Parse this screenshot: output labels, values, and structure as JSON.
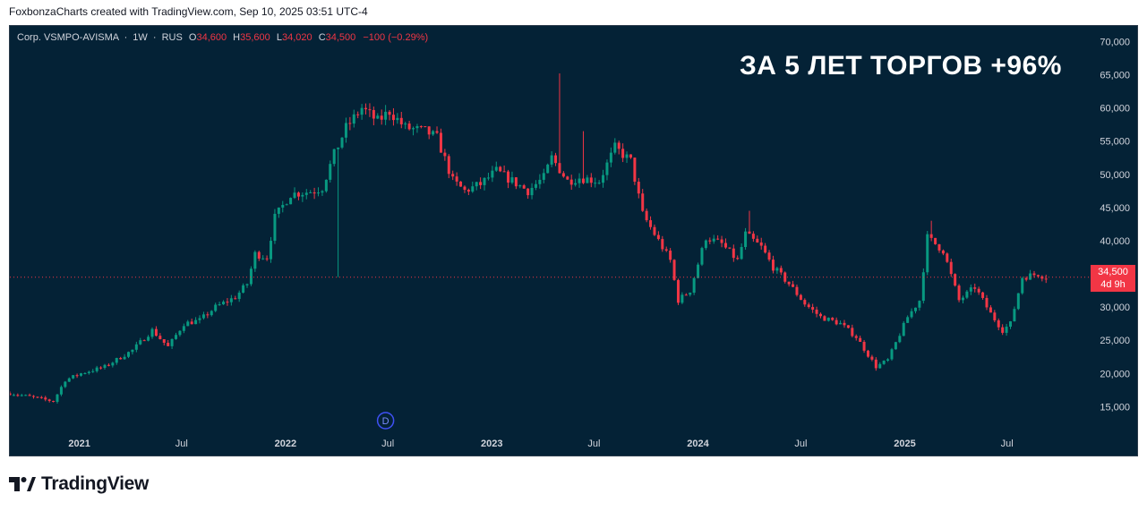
{
  "header": {
    "text": "FoxbonzaCharts created with TradingView.com, Sep 10, 2025 03:51 UTC-4"
  },
  "legend": {
    "symbol": "Corp. VSMPO-AVISMA",
    "interval": "1W",
    "exchange": "RUS",
    "open_label": "O",
    "open": "34,600",
    "high_label": "H",
    "high": "35,600",
    "low_label": "L",
    "low": "34,020",
    "close_label": "C",
    "close": "34,500",
    "change": "−100 (−0.29%)"
  },
  "annotation": {
    "text": "ЗА 5 ЛЕТ ТОРГОВ +96%"
  },
  "price_tag": {
    "price": "34,500",
    "countdown": "4d 9h"
  },
  "brand": {
    "name": "TradingView"
  },
  "colors": {
    "up": "#089981",
    "down": "#f23645",
    "background": "#042236",
    "grid_text": "#d1d4dc"
  },
  "chart_data": {
    "type": "candlestick",
    "title": "",
    "ylim": [
      11000,
      71000
    ],
    "y_ticks": [
      15000,
      20000,
      25000,
      30000,
      35000,
      40000,
      45000,
      50000,
      55000,
      60000,
      65000,
      70000
    ],
    "y_tick_labels": [
      "15,000",
      "20,000",
      "25,000",
      "30,000",
      "35,000",
      "40,000",
      "45,000",
      "50,000",
      "55,000",
      "60,000",
      "65,000",
      "70,000"
    ],
    "x_labels": [
      "2021",
      "Jul",
      "2022",
      "Jul",
      "2023",
      "Jul",
      "2024",
      "Jul",
      "2025",
      "Jul"
    ],
    "x_label_dates": [
      "2021-01-01",
      "2021-07-01",
      "2022-01-01",
      "2022-07-01",
      "2023-01-01",
      "2023-07-01",
      "2024-01-01",
      "2024-07-01",
      "2025-01-01",
      "2025-07-01"
    ],
    "x_range": [
      "2020-08-31",
      "2025-11-10"
    ],
    "last_price": 34500,
    "dividend_marker": {
      "date": "2022-06-27",
      "label": "D"
    },
    "path": [
      [
        "2020-08-31",
        17000
      ],
      [
        "2020-10-05",
        16500
      ],
      [
        "2020-11-16",
        15800
      ],
      [
        "2020-12-07",
        19000
      ],
      [
        "2021-01-04",
        20000
      ],
      [
        "2021-02-15",
        21000
      ],
      [
        "2021-04-05",
        23500
      ],
      [
        "2021-05-10",
        26500
      ],
      [
        "2021-06-07",
        24000
      ],
      [
        "2021-07-05",
        27500
      ],
      [
        "2021-08-02",
        28000
      ],
      [
        "2021-08-30",
        30000
      ],
      [
        "2021-10-04",
        31500
      ],
      [
        "2021-10-25",
        33500
      ],
      [
        "2021-11-08",
        38000
      ],
      [
        "2021-11-29",
        37500
      ],
      [
        "2021-12-13",
        43500
      ],
      [
        "2022-01-10",
        47000
      ],
      [
        "2022-02-21",
        47500
      ],
      [
        "2022-03-07",
        48000
      ],
      [
        "2022-03-28",
        53000
      ],
      [
        "2022-04-18",
        57000
      ],
      [
        "2022-05-16",
        60000
      ],
      [
        "2022-06-13",
        58000
      ],
      [
        "2022-07-04",
        59500
      ],
      [
        "2022-08-01",
        57000
      ],
      [
        "2022-09-05",
        56500
      ],
      [
        "2022-09-26",
        55500
      ],
      [
        "2022-10-24",
        49000
      ],
      [
        "2022-11-14",
        47500
      ],
      [
        "2022-12-12",
        48500
      ],
      [
        "2023-01-09",
        50500
      ],
      [
        "2023-02-06",
        49000
      ],
      [
        "2023-03-06",
        47500
      ],
      [
        "2023-04-03",
        49500
      ],
      [
        "2023-04-17",
        52500
      ],
      [
        "2023-05-15",
        49000
      ],
      [
        "2023-06-05",
        49500
      ],
      [
        "2023-07-10",
        49000
      ],
      [
        "2023-08-07",
        54000
      ],
      [
        "2023-09-04",
        52000
      ],
      [
        "2023-09-25",
        44000
      ],
      [
        "2023-10-16",
        41000
      ],
      [
        "2023-11-13",
        37000
      ],
      [
        "2023-11-27",
        31000
      ],
      [
        "2023-12-18",
        32500
      ],
      [
        "2024-01-15",
        40500
      ],
      [
        "2024-02-12",
        39500
      ],
      [
        "2024-03-11",
        37000
      ],
      [
        "2024-03-25",
        41000
      ],
      [
        "2024-04-22",
        39000
      ],
      [
        "2024-05-13",
        36000
      ],
      [
        "2024-06-10",
        33500
      ],
      [
        "2024-07-08",
        30500
      ],
      [
        "2024-08-05",
        28500
      ],
      [
        "2024-09-09",
        27500
      ],
      [
        "2024-10-07",
        25500
      ],
      [
        "2024-11-11",
        21000
      ],
      [
        "2024-12-02",
        22000
      ],
      [
        "2025-01-06",
        28500
      ],
      [
        "2025-01-27",
        31000
      ],
      [
        "2025-02-10",
        40500
      ],
      [
        "2025-03-10",
        38500
      ],
      [
        "2025-04-07",
        31000
      ],
      [
        "2025-05-05",
        33000
      ],
      [
        "2025-06-02",
        29000
      ],
      [
        "2025-06-23",
        26500
      ],
      [
        "2025-07-07",
        27500
      ],
      [
        "2025-07-28",
        34500
      ],
      [
        "2025-08-25",
        35000
      ],
      [
        "2025-09-08",
        34500
      ]
    ],
    "spikes": [
      {
        "date": "2022-04-04",
        "low": 34500
      },
      {
        "date": "2023-05-01",
        "high": 65200
      },
      {
        "date": "2023-06-12",
        "high": 56500
      },
      {
        "date": "2024-04-01",
        "high": 44500
      },
      {
        "date": "2025-02-17",
        "high": 43000
      }
    ]
  }
}
